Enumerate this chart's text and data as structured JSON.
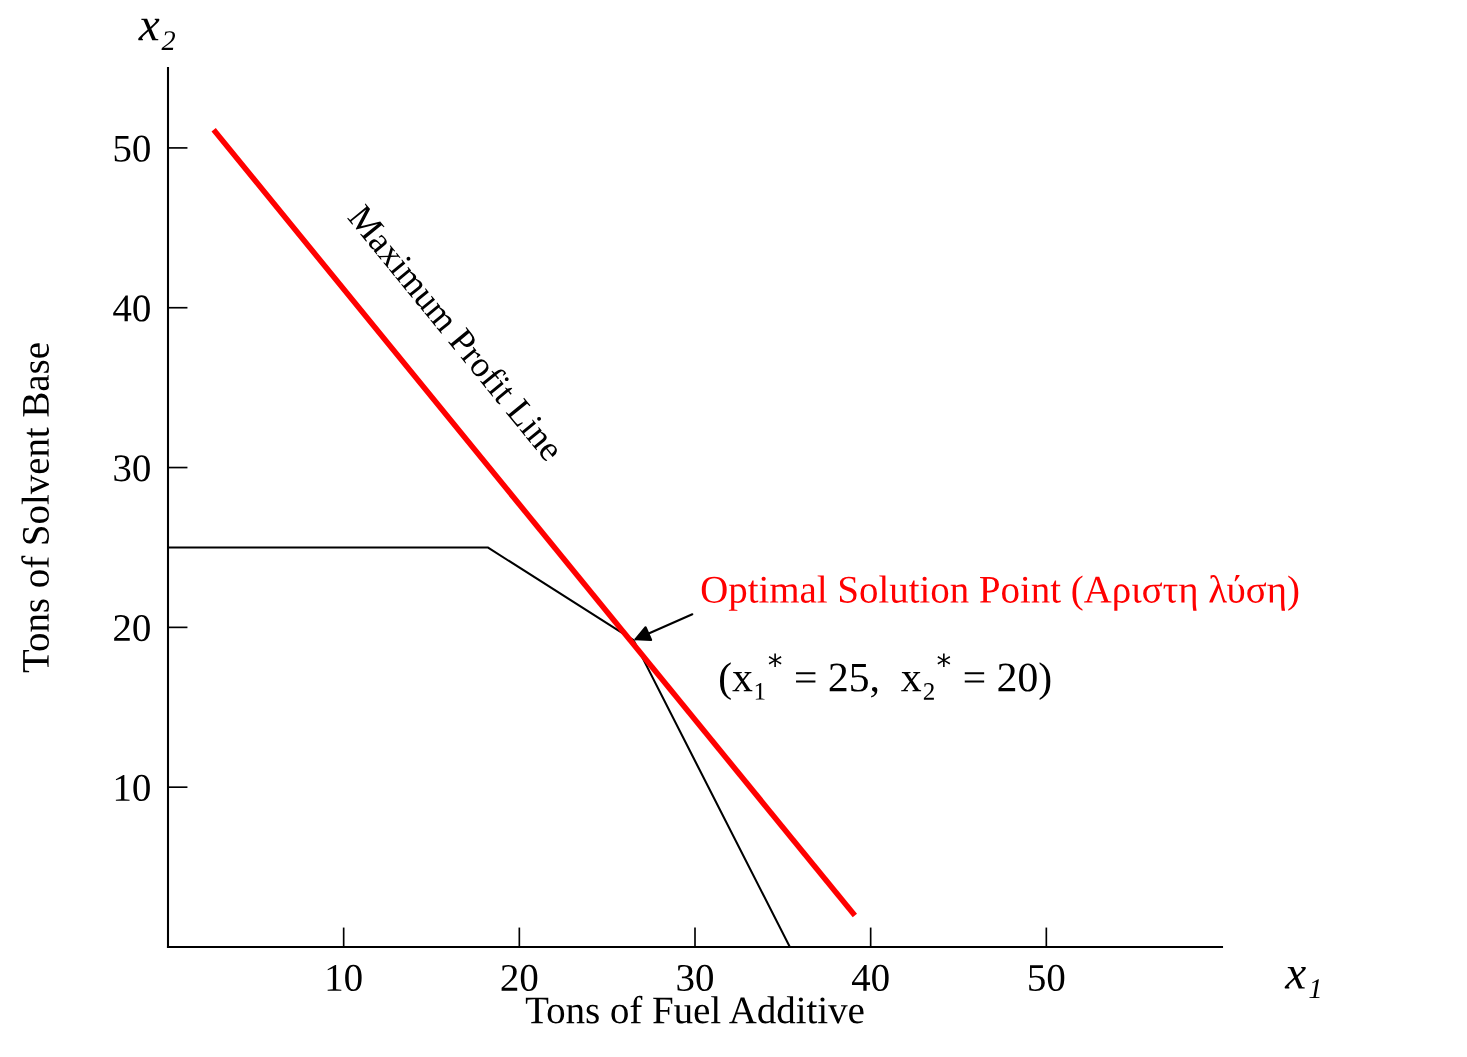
{
  "chart_data": {
    "type": "line",
    "xlabel": "Tons of Fuel Additive",
    "ylabel": "Tons of Solvent Base",
    "xlim": [
      0,
      60
    ],
    "ylim": [
      0,
      55
    ],
    "xticks": [
      10,
      20,
      30,
      40,
      50
    ],
    "yticks": [
      10,
      20,
      30,
      40,
      50
    ],
    "grid": false,
    "legend": false,
    "marker": "none",
    "line_style": "solid",
    "series": [
      {
        "color": "#000000",
        "x": [
          0,
          18.2,
          26.5,
          35.4
        ],
        "values": [
          25,
          25,
          19.2,
          0
        ]
      },
      {
        "color": "#ff0000",
        "x": [
          2.7,
          39
        ],
        "values": [
          51,
          2.1
        ]
      }
    ],
    "annotations": [
      {
        "text": "Maximum Profit Line",
        "x": 13.8,
        "y": 36.1
      },
      {
        "text": "Optimal Solution Point (Αριστη λύση)",
        "x": 26.5,
        "y": 19.2
      },
      "(x₁$^{*}$ = 25,  x₂$^{*}$ = 20)",
      "x₂",
      "x₁"
    ]
  }
}
